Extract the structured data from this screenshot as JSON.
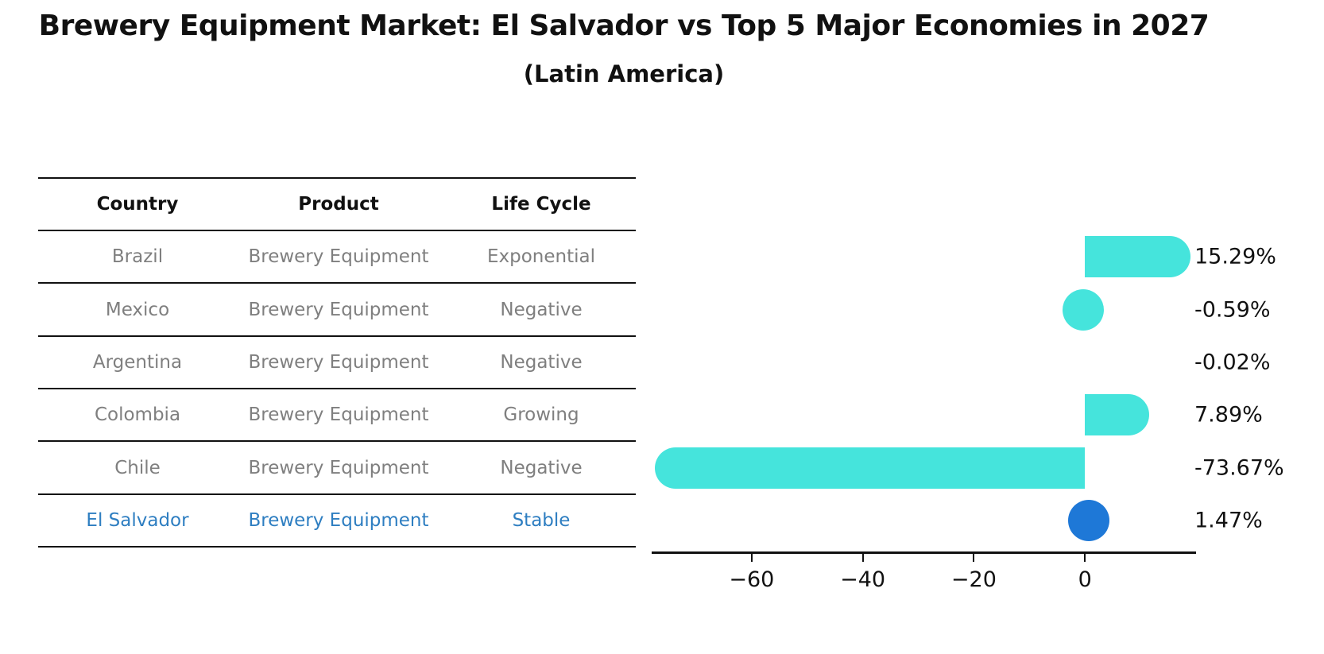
{
  "chart_data": {
    "type": "bar",
    "orientation": "horizontal",
    "title": "Brewery Equipment Market: El Salvador vs Top 5 Major Economies in 2027",
    "subtitle": "(Latin America)",
    "categories": [
      "Brazil",
      "Mexico",
      "Argentina",
      "Colombia",
      "Chile",
      "El Salvador"
    ],
    "values": [
      15.29,
      -0.59,
      -0.02,
      7.89,
      -73.67,
      1.47
    ],
    "value_labels": [
      "15.29%",
      "-0.59%",
      "-0.02%",
      "7.89%",
      "-73.67%",
      "1.47%"
    ],
    "unit": "%",
    "xticks": [
      -60,
      -40,
      -20,
      0
    ],
    "xtick_labels": [
      "−60",
      "−40",
      "−20",
      "0"
    ],
    "xlim": [
      -78,
      20
    ],
    "grid": false,
    "legend": null,
    "bar_color": "#45E4DC",
    "highlight_color": "#1E78D7",
    "highlight_index": 5
  },
  "table": {
    "headers": [
      "Country",
      "Product",
      "Life Cycle"
    ],
    "rows": [
      {
        "country": "Brazil",
        "product": "Brewery Equipment",
        "life_cycle": "Exponential",
        "highlight": false
      },
      {
        "country": "Mexico",
        "product": "Brewery Equipment",
        "life_cycle": "Negative",
        "highlight": false
      },
      {
        "country": "Argentina",
        "product": "Brewery Equipment",
        "life_cycle": "Negative",
        "highlight": false
      },
      {
        "country": "Colombia",
        "product": "Brewery Equipment",
        "life_cycle": "Growing",
        "highlight": false
      },
      {
        "country": "Chile",
        "product": "Brewery Equipment",
        "life_cycle": "Negative",
        "highlight": false
      },
      {
        "country": "El Salvador",
        "product": "Brewery Equipment",
        "life_cycle": "Stable",
        "highlight": true
      }
    ],
    "text_color": "#7f7f7f",
    "highlight_text_color": "#2E7EC1",
    "line_color": "#111111"
  }
}
